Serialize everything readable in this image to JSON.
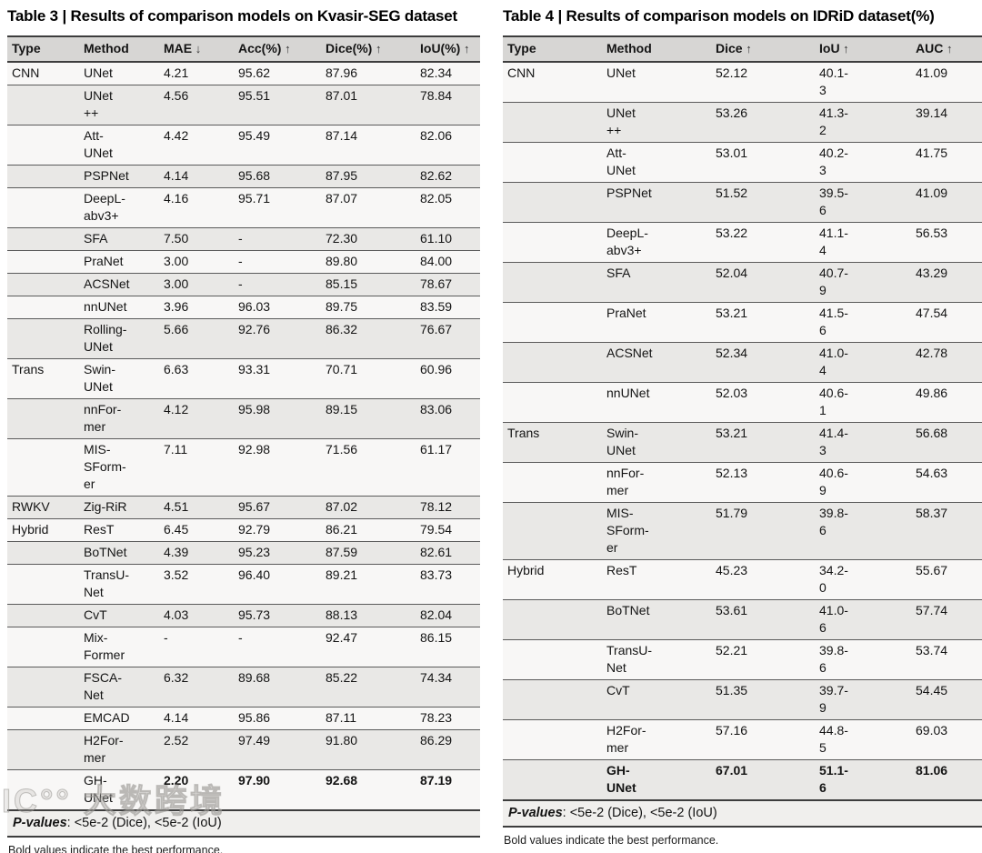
{
  "colors": {
    "header_bg": "#d7d6d4",
    "row_light": "#f8f7f6",
    "row_dark": "#e9e8e6",
    "rule_dark": "#3d3d3d",
    "rule_row": "#5a5a5a",
    "pvalues_bg": "#f0efed"
  },
  "watermark": {
    "text": "IC°° 大数跨境"
  },
  "table3": {
    "title": "Table 3 | Results of comparison models on Kvasir-SEG dataset",
    "columns": [
      {
        "label": "Type"
      },
      {
        "label": "Method"
      },
      {
        "label": "MAE",
        "arrow": "↓"
      },
      {
        "label": "Acc(%)",
        "arrow": "↑"
      },
      {
        "label": "Dice(%)",
        "arrow": "↑"
      },
      {
        "label": "IoU(%)",
        "arrow": "↑"
      }
    ],
    "rows": [
      {
        "type": "CNN",
        "method": "UNet",
        "values": [
          "4.21",
          "95.62",
          "87.96",
          "82.34"
        ]
      },
      {
        "type": "",
        "method": "UNet\n++",
        "values": [
          "4.56",
          "95.51",
          "87.01",
          "78.84"
        ]
      },
      {
        "type": "",
        "method": "Att-\nUNet",
        "values": [
          "4.42",
          "95.49",
          "87.14",
          "82.06"
        ]
      },
      {
        "type": "",
        "method": "PSPNet",
        "values": [
          "4.14",
          "95.68",
          "87.95",
          "82.62"
        ]
      },
      {
        "type": "",
        "method": "DeepL-\nabv3+",
        "values": [
          "4.16",
          "95.71",
          "87.07",
          "82.05"
        ]
      },
      {
        "type": "",
        "method": "SFA",
        "values": [
          "7.50",
          "-",
          "72.30",
          "61.10"
        ]
      },
      {
        "type": "",
        "method": "PraNet",
        "values": [
          "3.00",
          "-",
          "89.80",
          "84.00"
        ]
      },
      {
        "type": "",
        "method": "ACSNet",
        "values": [
          "3.00",
          "-",
          "85.15",
          "78.67"
        ]
      },
      {
        "type": "",
        "method": "nnUNet",
        "values": [
          "3.96",
          "96.03",
          "89.75",
          "83.59"
        ]
      },
      {
        "type": "",
        "method": "Rolling-\nUNet",
        "values": [
          "5.66",
          "92.76",
          "86.32",
          "76.67"
        ]
      },
      {
        "type": "Trans",
        "method": "Swin-\nUNet",
        "values": [
          "6.63",
          "93.31",
          "70.71",
          "60.96"
        ]
      },
      {
        "type": "",
        "method": "nnFor-\nmer",
        "values": [
          "4.12",
          "95.98",
          "89.15",
          "83.06"
        ]
      },
      {
        "type": "",
        "method": "MIS-\nSForm-\ner",
        "values": [
          "7.11",
          "92.98",
          "71.56",
          "61.17"
        ]
      },
      {
        "type": "RWKV",
        "method": "Zig-RiR",
        "values": [
          "4.51",
          "95.67",
          "87.02",
          "78.12"
        ]
      },
      {
        "type": "Hybrid",
        "method": "ResT",
        "values": [
          "6.45",
          "92.79",
          "86.21",
          "79.54"
        ]
      },
      {
        "type": "",
        "method": "BoTNet",
        "values": [
          "4.39",
          "95.23",
          "87.59",
          "82.61"
        ]
      },
      {
        "type": "",
        "method": "TransU-\nNet",
        "values": [
          "3.52",
          "96.40",
          "89.21",
          "83.73"
        ]
      },
      {
        "type": "",
        "method": "CvT",
        "values": [
          "4.03",
          "95.73",
          "88.13",
          "82.04"
        ]
      },
      {
        "type": "",
        "method": "Mix-\nFormer",
        "values": [
          "-",
          "-",
          "92.47",
          "86.15"
        ]
      },
      {
        "type": "",
        "method": "FSCA-\nNet",
        "values": [
          "6.32",
          "89.68",
          "85.22",
          "74.34"
        ]
      },
      {
        "type": "",
        "method": "EMCAD",
        "values": [
          "4.14",
          "95.86",
          "87.11",
          "78.23"
        ]
      },
      {
        "type": "",
        "method": "H2For-\nmer",
        "values": [
          "2.52",
          "97.49",
          "91.80",
          "86.29"
        ]
      },
      {
        "type": "",
        "method": "GH-\nUNet",
        "values": [
          "2.20",
          "97.90",
          "92.68",
          "87.19"
        ],
        "bold_values": true
      }
    ],
    "pvalues_label": "P-values",
    "pvalues_rest": ": <5e-2 (Dice), <5e-2 (IoU)",
    "footnote": "Bold values indicate the best performance."
  },
  "table4": {
    "title": "Table 4 | Results of comparison models on IDRiD dataset(%)",
    "columns": [
      {
        "label": "Type"
      },
      {
        "label": "Method"
      },
      {
        "label": "Dice",
        "arrow": "↑"
      },
      {
        "label": "IoU",
        "arrow": "↑"
      },
      {
        "label": "AUC",
        "arrow": "↑"
      }
    ],
    "rows": [
      {
        "type": "CNN",
        "method": "UNet",
        "values": [
          "52.12",
          "40.1-\n3",
          "41.09"
        ]
      },
      {
        "type": "",
        "method": "UNet\n++",
        "values": [
          "53.26",
          "41.3-\n2",
          "39.14"
        ]
      },
      {
        "type": "",
        "method": "Att-\nUNet",
        "values": [
          "53.01",
          "40.2-\n3",
          "41.75"
        ]
      },
      {
        "type": "",
        "method": "PSPNet",
        "values": [
          "51.52",
          "39.5-\n6",
          "41.09"
        ]
      },
      {
        "type": "",
        "method": "DeepL-\nabv3+",
        "values": [
          "53.22",
          "41.1-\n4",
          "56.53"
        ]
      },
      {
        "type": "",
        "method": "SFA",
        "values": [
          "52.04",
          "40.7-\n9",
          "43.29"
        ]
      },
      {
        "type": "",
        "method": "PraNet",
        "values": [
          "53.21",
          "41.5-\n6",
          "47.54"
        ]
      },
      {
        "type": "",
        "method": "ACSNet",
        "values": [
          "52.34",
          "41.0-\n4",
          "42.78"
        ]
      },
      {
        "type": "",
        "method": "nnUNet",
        "values": [
          "52.03",
          "40.6-\n1",
          "49.86"
        ]
      },
      {
        "type": "Trans",
        "method": "Swin-\nUNet",
        "values": [
          "53.21",
          "41.4-\n3",
          "56.68"
        ]
      },
      {
        "type": "",
        "method": "nnFor-\nmer",
        "values": [
          "52.13",
          "40.6-\n9",
          "54.63"
        ]
      },
      {
        "type": "",
        "method": "MIS-\nSForm-\ner",
        "values": [
          "51.79",
          "39.8-\n6",
          "58.37"
        ]
      },
      {
        "type": "Hybrid",
        "method": "ResT",
        "values": [
          "45.23",
          "34.2-\n0",
          "55.67"
        ]
      },
      {
        "type": "",
        "method": "BoTNet",
        "values": [
          "53.61",
          "41.0-\n6",
          "57.74"
        ]
      },
      {
        "type": "",
        "method": "TransU-\nNet",
        "values": [
          "52.21",
          "39.8-\n6",
          "53.74"
        ]
      },
      {
        "type": "",
        "method": "CvT",
        "values": [
          "51.35",
          "39.7-\n9",
          "54.45"
        ]
      },
      {
        "type": "",
        "method": "H2For-\nmer",
        "values": [
          "57.16",
          "44.8-\n5",
          "69.03"
        ]
      },
      {
        "type": "",
        "method": "GH-\nUNet",
        "values": [
          "67.01",
          "51.1-\n6",
          "81.06"
        ],
        "bold_values": true,
        "bold_method": true
      }
    ],
    "pvalues_label": "P-values",
    "pvalues_rest": ": <5e-2 (Dice), <5e-2 (IoU)",
    "footnote": "Bold values indicate the best performance."
  }
}
